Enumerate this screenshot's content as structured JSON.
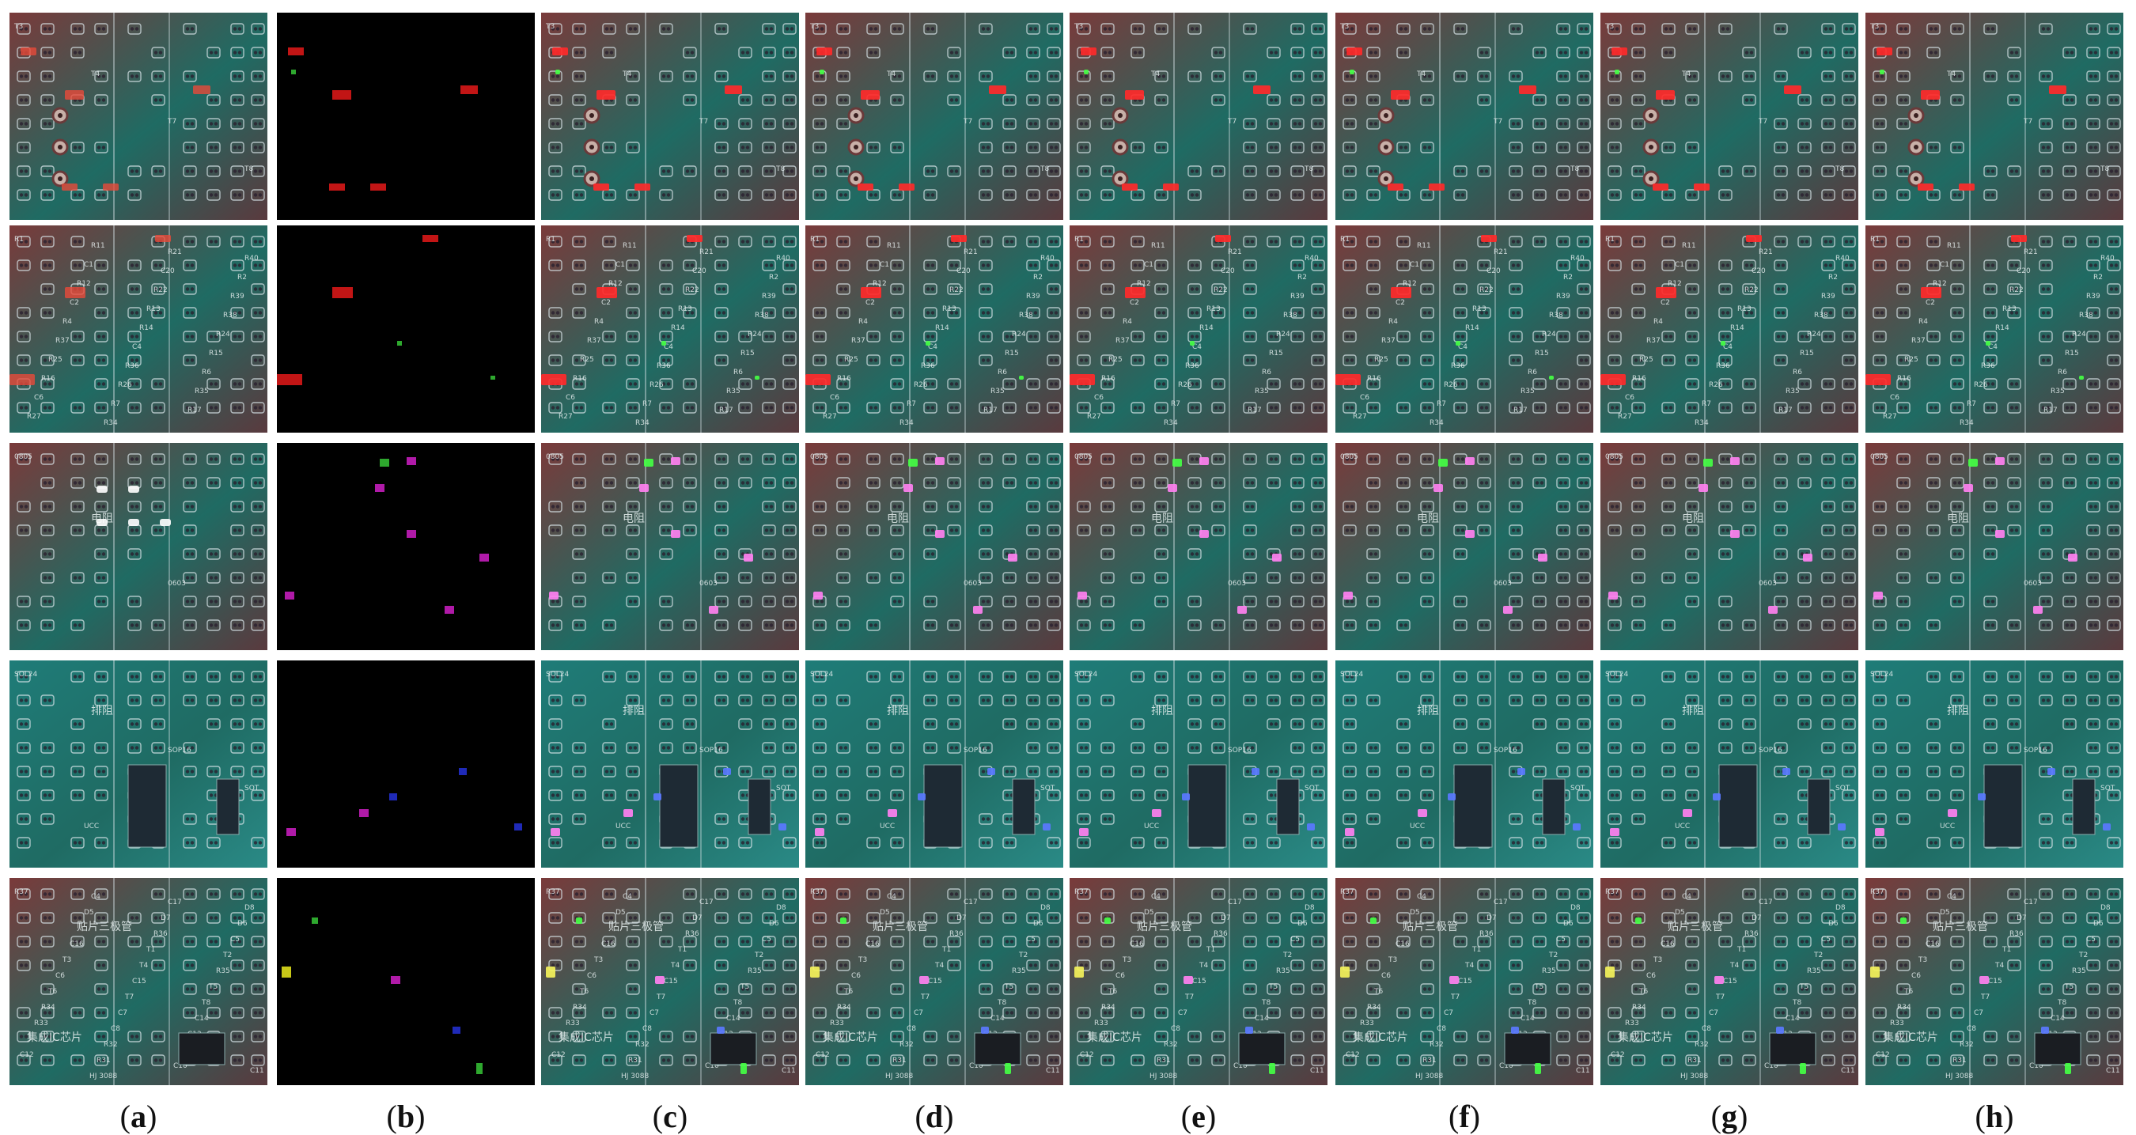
{
  "figure": {
    "columns": [
      "a",
      "b",
      "c",
      "d",
      "e",
      "f",
      "g",
      "h"
    ],
    "rows": 5
  },
  "board_text": {
    "row1": [
      "T3",
      "T4",
      "T7",
      "T8"
    ],
    "row2": [
      "R1",
      "R11",
      "R21",
      "R40",
      "C1",
      "C20",
      "R2",
      "R12",
      "R22",
      "R39",
      "C2",
      "R13",
      "R38",
      "R4",
      "R14",
      "R24",
      "R37",
      "C4",
      "R15",
      "R25",
      "R36",
      "R6",
      "R16",
      "R26",
      "R35",
      "C6",
      "R7",
      "R17",
      "R27",
      "R34"
    ],
    "row3": [
      "0805",
      "电阻",
      "0603"
    ],
    "row4": [
      "SOL24",
      "排阻",
      "SOP16",
      "SOT",
      "UCC"
    ],
    "row5": [
      "R37",
      "C4",
      "C17",
      "D8",
      "D5",
      "D7",
      "D6",
      "贴片三极管",
      "R36",
      "C5",
      "C16",
      "T1",
      "T2",
      "T3",
      "T4",
      "R35",
      "C6",
      "C15",
      "T5",
      "T6",
      "T7",
      "T8",
      "R34",
      "C7",
      "C14",
      "R33",
      "C8",
      "C13",
      "集成IC芯片",
      "R32",
      "C9",
      "C12",
      "R31",
      "C10",
      "C11",
      "HJ 3088"
    ]
  },
  "colors": {
    "board_green": "#1f6b63",
    "board_red": "#7a3a3a",
    "pad_outline": "#d8e4e8",
    "mask_bg": "#000000",
    "class_red": "#c21515",
    "class_green": "#2ea82e",
    "class_magenta": "#b01aa8",
    "class_blue": "#1f2ab8",
    "class_yellow": "#c8c818",
    "hl_red": "#ff2a2a",
    "hl_pink": "#ff80f0",
    "hl_green": "#44ff44"
  }
}
